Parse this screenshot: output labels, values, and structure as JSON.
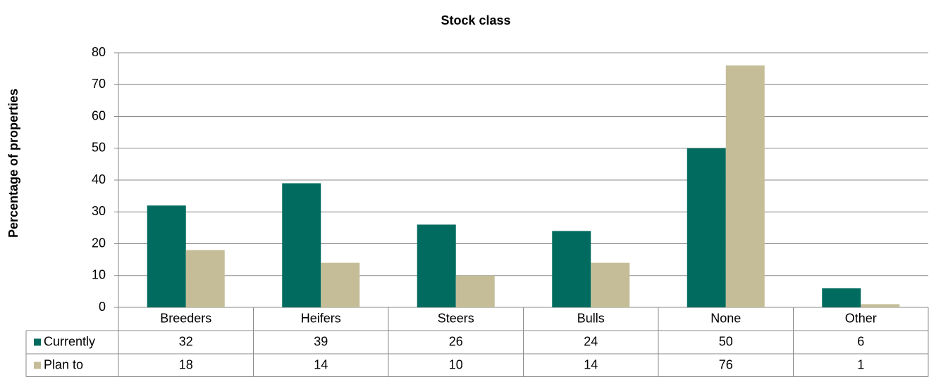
{
  "chart_data": {
    "type": "bar",
    "title": "Stock class",
    "y_label": "Percentage of properties",
    "categories": [
      "Breeders",
      "Heifers",
      "Steers",
      "Bulls",
      "None",
      "Other"
    ],
    "series": [
      {
        "name": "Currently",
        "color": "#006b5e",
        "values": [
          32,
          39,
          26,
          24,
          50,
          6
        ]
      },
      {
        "name": "Plan to",
        "color": "#c4bd97",
        "values": [
          18,
          14,
          10,
          14,
          76,
          1
        ]
      }
    ],
    "ylim": [
      0,
      80
    ],
    "yticks": [
      0,
      10,
      20,
      30,
      40,
      50,
      60,
      70,
      80
    ],
    "grid": true,
    "data_table": true
  }
}
